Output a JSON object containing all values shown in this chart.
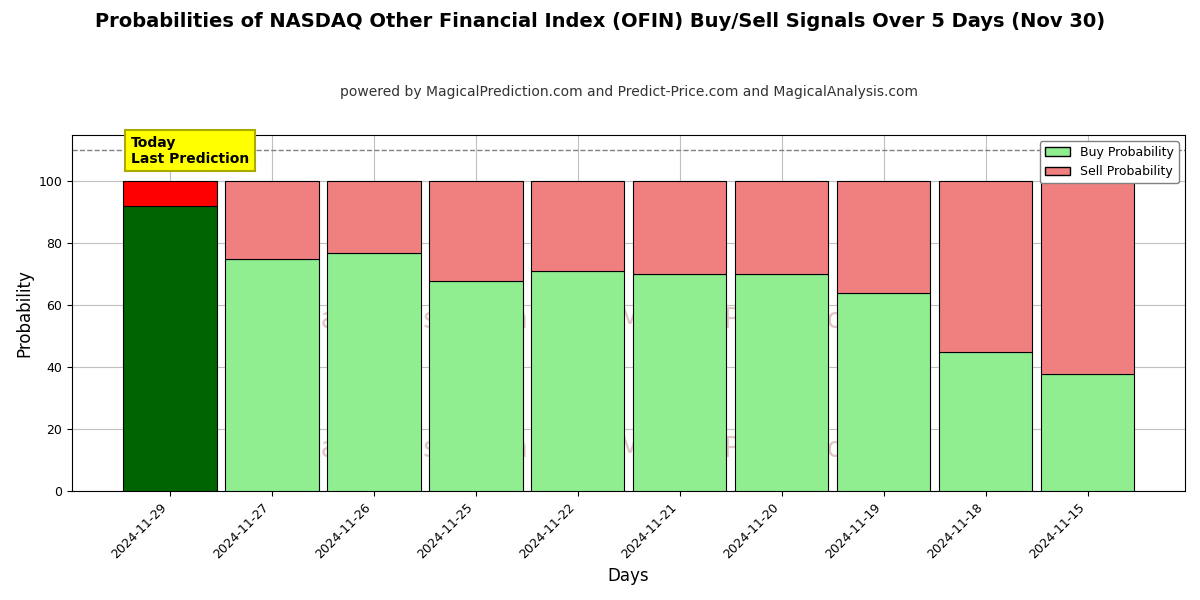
{
  "title": "Probabilities of NASDAQ Other Financial Index (OFIN) Buy/Sell Signals Over 5 Days (Nov 30)",
  "subtitle": "powered by MagicalPrediction.com and Predict-Price.com and MagicalAnalysis.com",
  "xlabel": "Days",
  "ylabel": "Probability",
  "categories": [
    "2024-11-29",
    "2024-11-27",
    "2024-11-26",
    "2024-11-25",
    "2024-11-22",
    "2024-11-21",
    "2024-11-20",
    "2024-11-19",
    "2024-11-18",
    "2024-11-15"
  ],
  "buy_values": [
    92,
    75,
    77,
    68,
    71,
    70,
    70,
    64,
    45,
    38
  ],
  "sell_values": [
    8,
    25,
    23,
    32,
    29,
    30,
    30,
    36,
    55,
    62
  ],
  "today_bar_index": 0,
  "buy_color_today": "#006400",
  "sell_color_today": "#FF0000",
  "buy_color_rest": "#90EE90",
  "sell_color_rest": "#F08080",
  "bar_edge_color": "#000000",
  "ylim": [
    0,
    115
  ],
  "yticks": [
    0,
    20,
    40,
    60,
    80,
    100
  ],
  "dashed_line_y": 110,
  "legend_buy_label": "Buy Probability",
  "legend_sell_label": "Sell Probability",
  "today_box_text": "Today\nLast Prediction",
  "today_box_color": "#FFFF00",
  "background_color": "#FFFFFF",
  "grid_color": "#C0C0C0",
  "title_fontsize": 14,
  "subtitle_fontsize": 10,
  "axis_label_fontsize": 12,
  "tick_fontsize": 9,
  "bar_width": 0.92
}
